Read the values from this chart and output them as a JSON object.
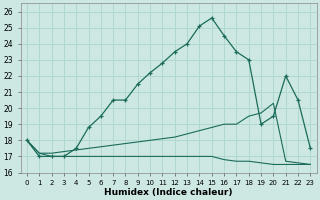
{
  "xlabel": "Humidex (Indice chaleur)",
  "xlim": [
    -0.5,
    23.5
  ],
  "ylim": [
    16,
    26.5
  ],
  "yticks": [
    16,
    17,
    18,
    19,
    20,
    21,
    22,
    23,
    24,
    25,
    26
  ],
  "xticks": [
    0,
    1,
    2,
    3,
    4,
    5,
    6,
    7,
    8,
    9,
    10,
    11,
    12,
    13,
    14,
    15,
    16,
    17,
    18,
    19,
    20,
    21,
    22,
    23
  ],
  "bg_color": "#cde8e3",
  "grid_color": "#b0d8d0",
  "line_color": "#1a6b5a",
  "main_line_y": [
    18.0,
    17.0,
    17.0,
    17.0,
    17.5,
    18.8,
    19.5,
    20.5,
    20.5,
    21.5,
    22.2,
    22.8,
    23.5,
    24.0,
    25.1,
    25.6,
    24.5,
    23.5,
    23.0,
    19.0,
    19.5,
    22.0,
    20.5,
    17.5
  ],
  "line_upper_y": [
    18.0,
    17.2,
    17.2,
    17.3,
    17.4,
    17.5,
    17.6,
    17.7,
    17.8,
    17.9,
    18.0,
    18.1,
    18.2,
    18.4,
    18.6,
    18.8,
    19.0,
    19.0,
    19.5,
    19.7,
    20.3,
    16.7,
    16.6,
    16.5
  ],
  "line_lower_y": [
    18.0,
    17.2,
    17.0,
    17.0,
    17.0,
    17.0,
    17.0,
    17.0,
    17.0,
    17.0,
    17.0,
    17.0,
    17.0,
    17.0,
    17.0,
    17.0,
    16.8,
    16.7,
    16.7,
    16.6,
    16.5,
    16.5,
    16.5,
    16.5
  ]
}
